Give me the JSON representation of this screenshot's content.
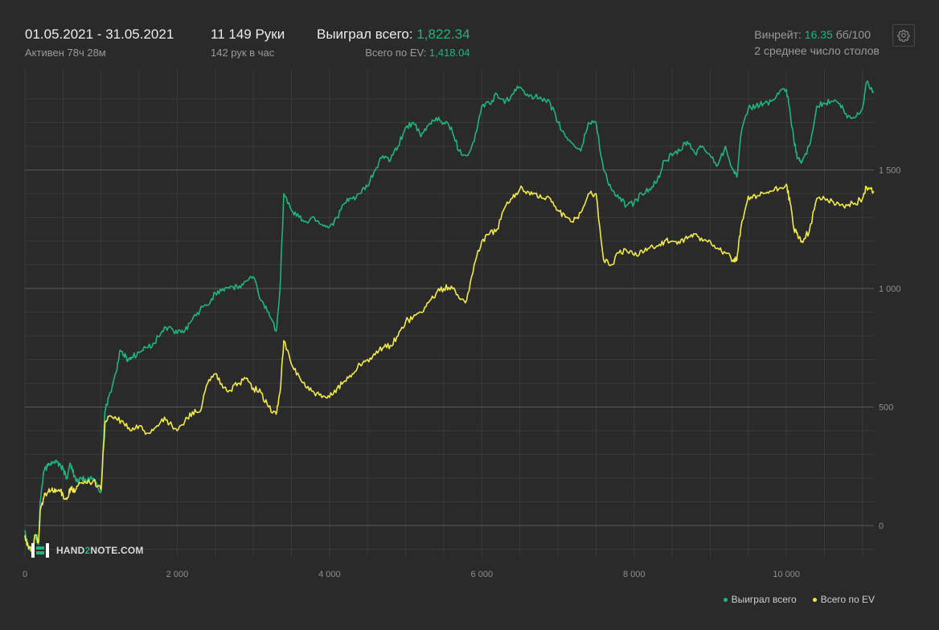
{
  "header": {
    "date_range": "01.05.2021 - 31.05.2021",
    "active": "Активен 78ч 28м",
    "hands": "11 149 Руки",
    "hands_per_hour": "142 рук в час",
    "won_label": "Выиграл всего:",
    "won_value": "1,822.34",
    "ev_label": "Всего по EV:",
    "ev_value": "1,418.04",
    "winrate_label": "Винрейт:",
    "winrate_value": "16.35",
    "winrate_unit": "бб/100",
    "avg_tables": "2 среднее число столов",
    "settings_icon": "gear-icon"
  },
  "logo": {
    "prefix": "HAND",
    "mid": "2",
    "suffix": "NOTE.COM"
  },
  "legend": {
    "won": "Выиграл всего",
    "ev": "Всего по EV"
  },
  "colors": {
    "won": "#1fb57c",
    "ev": "#f2ea4a",
    "background": "#2a2a2a",
    "grid_major": "#5a5a5a",
    "grid_minor": "#3a3a3a"
  },
  "chart_data": {
    "type": "line",
    "title": "",
    "xlabel": "",
    "ylabel": "",
    "xlim": [
      0,
      11149
    ],
    "ylim": [
      -120,
      1900
    ],
    "x_ticks": [
      0,
      2000,
      4000,
      6000,
      8000,
      10000
    ],
    "x_tick_labels": [
      "0",
      "2 000",
      "4 000",
      "6 000",
      "8 000",
      "10 000"
    ],
    "y_ticks": [
      0,
      500,
      1000,
      1500
    ],
    "y_tick_labels": [
      "0",
      "500",
      "1 000",
      "1 500"
    ],
    "grid": true,
    "legend_position": "bottom-right",
    "series": [
      {
        "name": "Выиграл всего",
        "color": "#1fb57c",
        "points": [
          [
            0,
            -20
          ],
          [
            50,
            -90
          ],
          [
            100,
            -100
          ],
          [
            130,
            -40
          ],
          [
            180,
            -80
          ],
          [
            200,
            100
          ],
          [
            250,
            230
          ],
          [
            300,
            250
          ],
          [
            350,
            270
          ],
          [
            400,
            270
          ],
          [
            450,
            260
          ],
          [
            500,
            240
          ],
          [
            550,
            200
          ],
          [
            600,
            260
          ],
          [
            650,
            210
          ],
          [
            700,
            180
          ],
          [
            750,
            200
          ],
          [
            800,
            190
          ],
          [
            900,
            200
          ],
          [
            1000,
            140
          ],
          [
            1050,
            480
          ],
          [
            1100,
            540
          ],
          [
            1200,
            650
          ],
          [
            1250,
            740
          ],
          [
            1300,
            720
          ],
          [
            1350,
            700
          ],
          [
            1400,
            710
          ],
          [
            1500,
            730
          ],
          [
            1600,
            750
          ],
          [
            1700,
            770
          ],
          [
            1800,
            820
          ],
          [
            1900,
            840
          ],
          [
            2000,
            810
          ],
          [
            2100,
            820
          ],
          [
            2200,
            870
          ],
          [
            2300,
            910
          ],
          [
            2400,
            930
          ],
          [
            2500,
            980
          ],
          [
            2600,
            1000
          ],
          [
            2700,
            1010
          ],
          [
            2800,
            1000
          ],
          [
            2900,
            1030
          ],
          [
            3000,
            1050
          ],
          [
            3100,
            950
          ],
          [
            3200,
            900
          ],
          [
            3300,
            820
          ],
          [
            3350,
            1000
          ],
          [
            3400,
            1400
          ],
          [
            3500,
            1330
          ],
          [
            3600,
            1300
          ],
          [
            3700,
            1280
          ],
          [
            3800,
            1300
          ],
          [
            3900,
            1270
          ],
          [
            4000,
            1260
          ],
          [
            4100,
            1300
          ],
          [
            4200,
            1360
          ],
          [
            4300,
            1380
          ],
          [
            4400,
            1400
          ],
          [
            4500,
            1430
          ],
          [
            4600,
            1500
          ],
          [
            4700,
            1560
          ],
          [
            4800,
            1540
          ],
          [
            4900,
            1600
          ],
          [
            5000,
            1680
          ],
          [
            5100,
            1700
          ],
          [
            5200,
            1640
          ],
          [
            5300,
            1690
          ],
          [
            5400,
            1720
          ],
          [
            5500,
            1700
          ],
          [
            5600,
            1680
          ],
          [
            5700,
            1580
          ],
          [
            5800,
            1560
          ],
          [
            5900,
            1620
          ],
          [
            6000,
            1770
          ],
          [
            6100,
            1780
          ],
          [
            6200,
            1820
          ],
          [
            6300,
            1780
          ],
          [
            6400,
            1820
          ],
          [
            6500,
            1850
          ],
          [
            6600,
            1820
          ],
          [
            6700,
            1810
          ],
          [
            6800,
            1790
          ],
          [
            6900,
            1780
          ],
          [
            7000,
            1700
          ],
          [
            7100,
            1640
          ],
          [
            7200,
            1610
          ],
          [
            7300,
            1580
          ],
          [
            7400,
            1700
          ],
          [
            7500,
            1700
          ],
          [
            7600,
            1500
          ],
          [
            7700,
            1420
          ],
          [
            7800,
            1380
          ],
          [
            7900,
            1350
          ],
          [
            8000,
            1360
          ],
          [
            8100,
            1400
          ],
          [
            8200,
            1420
          ],
          [
            8300,
            1450
          ],
          [
            8400,
            1540
          ],
          [
            8500,
            1560
          ],
          [
            8600,
            1580
          ],
          [
            8700,
            1620
          ],
          [
            8800,
            1570
          ],
          [
            8900,
            1600
          ],
          [
            9000,
            1560
          ],
          [
            9100,
            1520
          ],
          [
            9200,
            1600
          ],
          [
            9300,
            1500
          ],
          [
            9350,
            1470
          ],
          [
            9400,
            1640
          ],
          [
            9500,
            1760
          ],
          [
            9600,
            1770
          ],
          [
            9700,
            1780
          ],
          [
            9800,
            1790
          ],
          [
            9900,
            1820
          ],
          [
            10000,
            1840
          ],
          [
            10050,
            1740
          ],
          [
            10100,
            1620
          ],
          [
            10150,
            1550
          ],
          [
            10200,
            1530
          ],
          [
            10300,
            1600
          ],
          [
            10400,
            1770
          ],
          [
            10500,
            1780
          ],
          [
            10600,
            1790
          ],
          [
            10700,
            1780
          ],
          [
            10800,
            1720
          ],
          [
            10900,
            1720
          ],
          [
            11000,
            1760
          ],
          [
            11050,
            1870
          ],
          [
            11149,
            1830
          ]
        ]
      },
      {
        "name": "Всего по EV",
        "color": "#f2ea4a",
        "points": [
          [
            0,
            -40
          ],
          [
            50,
            -100
          ],
          [
            100,
            -100
          ],
          [
            130,
            -40
          ],
          [
            180,
            -70
          ],
          [
            200,
            60
          ],
          [
            250,
            120
          ],
          [
            300,
            140
          ],
          [
            350,
            150
          ],
          [
            400,
            140
          ],
          [
            450,
            150
          ],
          [
            500,
            130
          ],
          [
            550,
            110
          ],
          [
            600,
            160
          ],
          [
            650,
            140
          ],
          [
            700,
            170
          ],
          [
            800,
            180
          ],
          [
            900,
            190
          ],
          [
            1000,
            150
          ],
          [
            1050,
            430
          ],
          [
            1100,
            460
          ],
          [
            1200,
            450
          ],
          [
            1300,
            430
          ],
          [
            1400,
            400
          ],
          [
            1500,
            420
          ],
          [
            1600,
            390
          ],
          [
            1700,
            410
          ],
          [
            1800,
            450
          ],
          [
            1900,
            430
          ],
          [
            2000,
            400
          ],
          [
            2100,
            440
          ],
          [
            2200,
            480
          ],
          [
            2300,
            480
          ],
          [
            2400,
            600
          ],
          [
            2500,
            640
          ],
          [
            2600,
            580
          ],
          [
            2700,
            570
          ],
          [
            2800,
            600
          ],
          [
            2900,
            620
          ],
          [
            3000,
            580
          ],
          [
            3100,
            560
          ],
          [
            3200,
            500
          ],
          [
            3300,
            470
          ],
          [
            3350,
            560
          ],
          [
            3400,
            780
          ],
          [
            3500,
            680
          ],
          [
            3600,
            630
          ],
          [
            3700,
            580
          ],
          [
            3800,
            560
          ],
          [
            3900,
            540
          ],
          [
            4000,
            540
          ],
          [
            4100,
            580
          ],
          [
            4200,
            610
          ],
          [
            4300,
            640
          ],
          [
            4400,
            680
          ],
          [
            4500,
            700
          ],
          [
            4600,
            720
          ],
          [
            4700,
            750
          ],
          [
            4800,
            760
          ],
          [
            4900,
            800
          ],
          [
            5000,
            860
          ],
          [
            5100,
            880
          ],
          [
            5200,
            900
          ],
          [
            5300,
            940
          ],
          [
            5400,
            980
          ],
          [
            5500,
            1000
          ],
          [
            5600,
            1010
          ],
          [
            5700,
            960
          ],
          [
            5800,
            950
          ],
          [
            5900,
            1100
          ],
          [
            6000,
            1200
          ],
          [
            6100,
            1230
          ],
          [
            6200,
            1250
          ],
          [
            6300,
            1340
          ],
          [
            6400,
            1380
          ],
          [
            6500,
            1420
          ],
          [
            6600,
            1410
          ],
          [
            6700,
            1400
          ],
          [
            6800,
            1380
          ],
          [
            6900,
            1380
          ],
          [
            7000,
            1330
          ],
          [
            7100,
            1300
          ],
          [
            7200,
            1280
          ],
          [
            7300,
            1320
          ],
          [
            7400,
            1400
          ],
          [
            7500,
            1400
          ],
          [
            7600,
            1120
          ],
          [
            7700,
            1100
          ],
          [
            7800,
            1150
          ],
          [
            7900,
            1160
          ],
          [
            8000,
            1140
          ],
          [
            8100,
            1160
          ],
          [
            8200,
            1170
          ],
          [
            8300,
            1180
          ],
          [
            8400,
            1200
          ],
          [
            8500,
            1200
          ],
          [
            8600,
            1190
          ],
          [
            8700,
            1210
          ],
          [
            8800,
            1230
          ],
          [
            8900,
            1200
          ],
          [
            9000,
            1200
          ],
          [
            9100,
            1170
          ],
          [
            9200,
            1150
          ],
          [
            9300,
            1120
          ],
          [
            9350,
            1120
          ],
          [
            9400,
            1250
          ],
          [
            9500,
            1390
          ],
          [
            9600,
            1380
          ],
          [
            9700,
            1400
          ],
          [
            9800,
            1410
          ],
          [
            9900,
            1420
          ],
          [
            10000,
            1440
          ],
          [
            10050,
            1360
          ],
          [
            10100,
            1250
          ],
          [
            10150,
            1220
          ],
          [
            10200,
            1200
          ],
          [
            10300,
            1240
          ],
          [
            10400,
            1380
          ],
          [
            10500,
            1380
          ],
          [
            10600,
            1370
          ],
          [
            10700,
            1350
          ],
          [
            10800,
            1350
          ],
          [
            10900,
            1360
          ],
          [
            11000,
            1380
          ],
          [
            11050,
            1430
          ],
          [
            11149,
            1410
          ]
        ]
      }
    ]
  }
}
